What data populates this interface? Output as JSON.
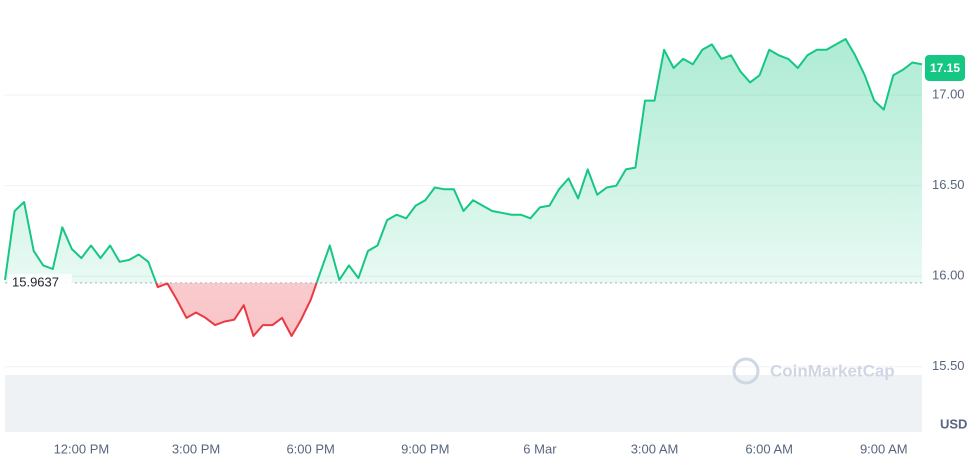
{
  "chart_data": {
    "type": "line",
    "x": [
      0,
      0.25,
      0.5,
      0.75,
      1,
      1.25,
      1.5,
      1.75,
      2,
      2.25,
      2.5,
      2.75,
      3,
      3.25,
      3.5,
      3.75,
      4,
      4.25,
      4.5,
      4.75,
      5,
      5.25,
      5.5,
      5.75,
      6,
      6.25,
      6.5,
      6.75,
      7,
      7.25,
      7.5,
      7.75,
      8,
      8.25,
      8.5,
      8.75,
      9,
      9.25,
      9.5,
      9.75,
      10,
      10.25,
      10.5,
      10.75,
      11,
      11.25,
      11.5,
      11.75,
      12,
      12.25,
      12.5,
      12.75,
      13,
      13.25,
      13.5,
      13.75,
      14,
      14.25,
      14.5,
      14.75,
      15,
      15.25,
      15.5,
      15.75,
      16,
      16.25,
      16.5,
      16.75,
      17,
      17.25,
      17.5,
      17.75,
      18,
      18.25,
      18.5,
      18.75,
      19,
      19.25,
      19.5,
      19.75,
      20,
      20.25,
      20.5,
      20.75,
      21,
      21.25,
      21.5,
      21.75,
      22,
      22.25,
      22.5,
      22.75,
      23,
      23.25,
      23.5,
      23.75,
      24
    ],
    "values": [
      15.98,
      16.36,
      16.41,
      16.14,
      16.06,
      16.04,
      16.27,
      16.15,
      16.1,
      16.17,
      16.1,
      16.17,
      16.08,
      16.09,
      16.12,
      16.08,
      15.94,
      15.96,
      15.87,
      15.77,
      15.8,
      15.77,
      15.73,
      15.75,
      15.76,
      15.84,
      15.67,
      15.73,
      15.73,
      15.77,
      15.67,
      15.76,
      15.87,
      16.02,
      16.17,
      15.98,
      16.06,
      15.99,
      16.14,
      16.17,
      16.31,
      16.34,
      16.32,
      16.39,
      16.42,
      16.49,
      16.48,
      16.48,
      16.36,
      16.42,
      16.39,
      16.36,
      16.35,
      16.34,
      16.34,
      16.32,
      16.38,
      16.39,
      16.48,
      16.54,
      16.43,
      16.59,
      16.45,
      16.49,
      16.5,
      16.59,
      16.6,
      16.97,
      16.97,
      17.25,
      17.15,
      17.2,
      17.17,
      17.25,
      17.28,
      17.2,
      17.22,
      17.13,
      17.07,
      17.11,
      17.25,
      17.22,
      17.2,
      17.15,
      17.22,
      17.25,
      17.25,
      17.28,
      17.31,
      17.22,
      17.11,
      16.97,
      16.92,
      17.11,
      17.14,
      17.18,
      17.17
    ],
    "color_up": "#16c784",
    "color_down": "#ea3943",
    "baseline": 15.9637,
    "current_price": 17.15,
    "currency": "USD",
    "watermark": "CoinMarketCap",
    "xlim": [
      0,
      24
    ],
    "xticks": [
      {
        "value": 2,
        "label": "12:00 PM"
      },
      {
        "value": 5,
        "label": "3:00 PM"
      },
      {
        "value": 8,
        "label": "6:00 PM"
      },
      {
        "value": 11,
        "label": "9:00 PM"
      },
      {
        "value": 14,
        "label": "6 Mar"
      },
      {
        "value": 17,
        "label": "3:00 AM"
      },
      {
        "value": 20,
        "label": "6:00 AM"
      },
      {
        "value": 23,
        "label": "9:00 AM"
      }
    ],
    "ylim": [
      15.14,
      17.47
    ],
    "yticks": [
      {
        "value": 15.5,
        "label": "15.50"
      },
      {
        "value": 16,
        "label": "16.00"
      },
      {
        "value": 16.5,
        "label": "16.50"
      },
      {
        "value": 17,
        "label": "17.00"
      }
    ],
    "grid": true
  }
}
